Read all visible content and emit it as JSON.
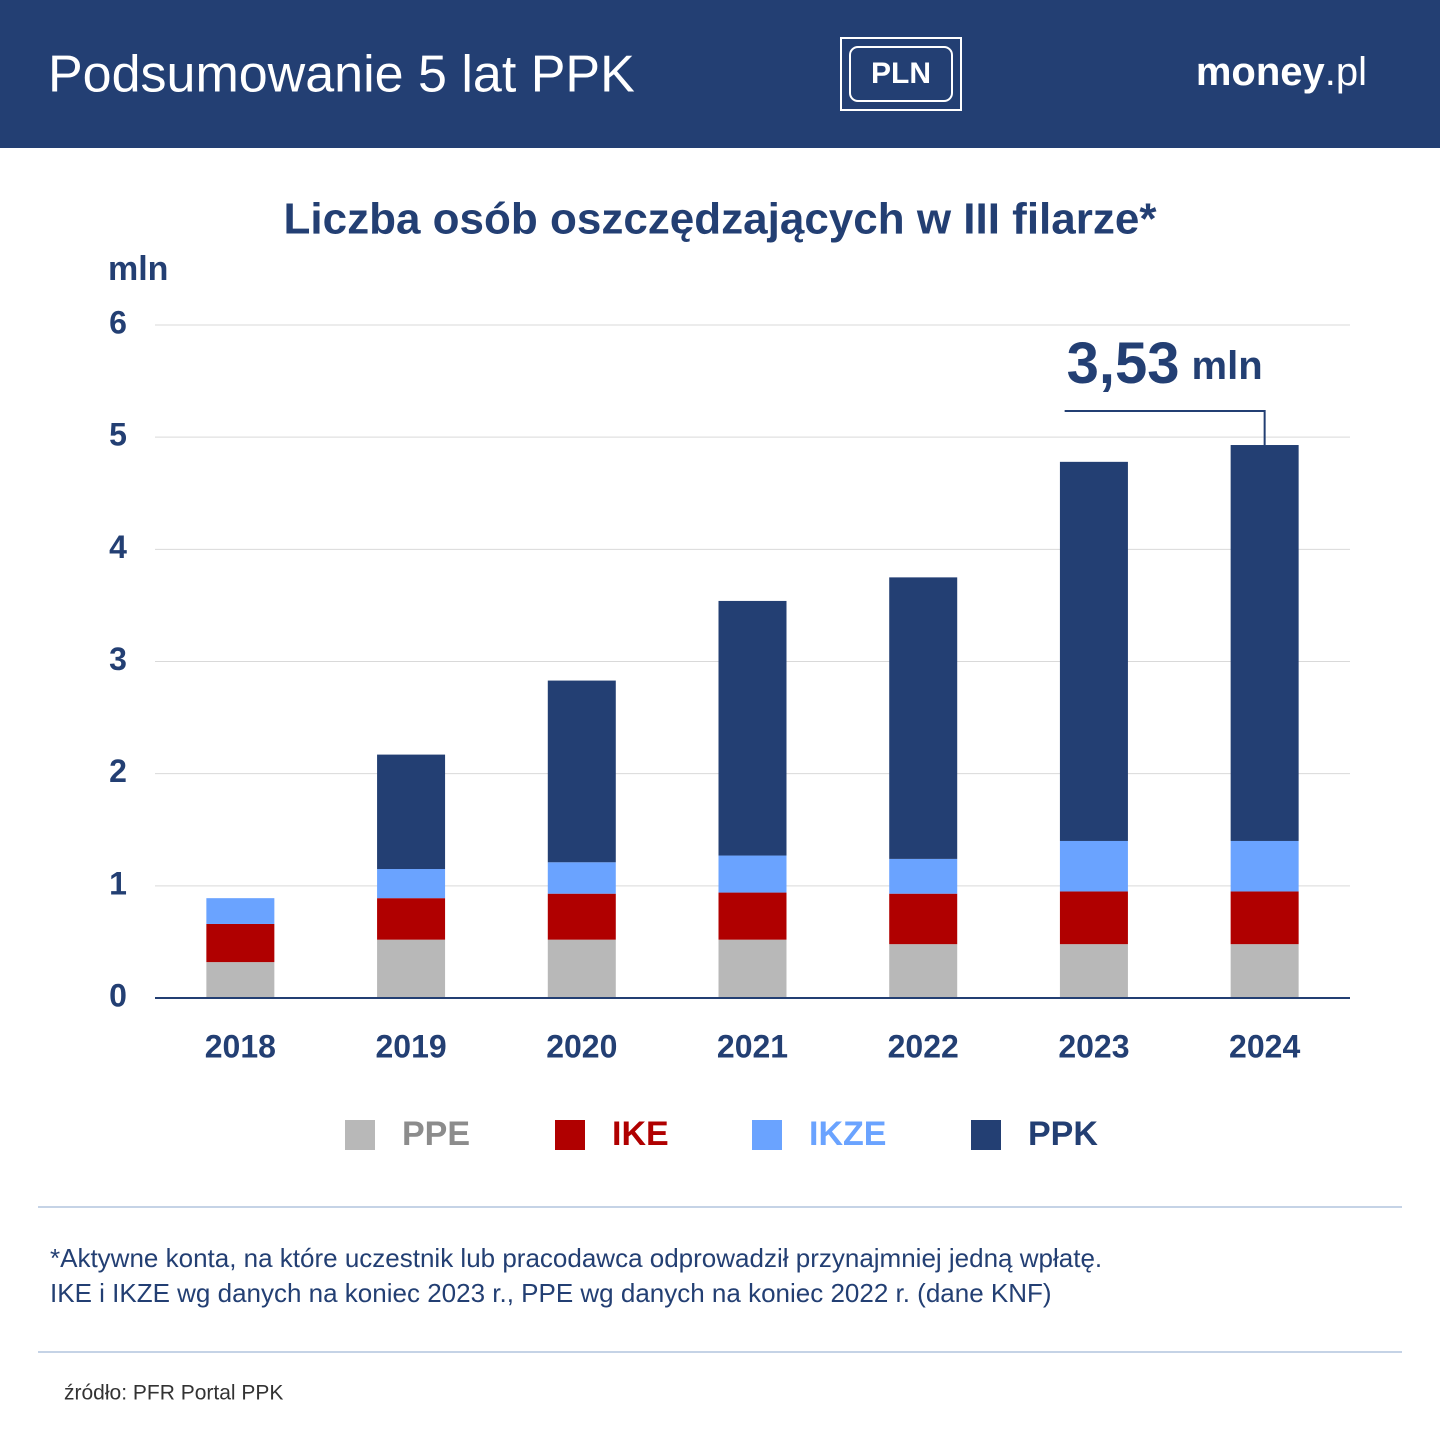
{
  "header": {
    "title": "Podsumowanie 5 lat PPK",
    "badge": "PLN",
    "logo": "money",
    "logo_suffix": ".pl"
  },
  "chart_data": {
    "type": "stacked_bar",
    "title": "Liczba osób oszczędzających w III filarze*",
    "y_label": "mln",
    "categories": [
      "2018",
      "2019",
      "2020",
      "2021",
      "2022",
      "2023",
      "2024"
    ],
    "series": [
      {
        "name": "PPE",
        "color": "#b8b8b8",
        "text_color": "#8c8c8c",
        "values": [
          0.32,
          0.52,
          0.52,
          0.52,
          0.48,
          0.48,
          0.48
        ]
      },
      {
        "name": "IKE",
        "color": "#b00000",
        "text_color": "#b00000",
        "values": [
          0.34,
          0.37,
          0.41,
          0.42,
          0.45,
          0.47,
          0.47
        ]
      },
      {
        "name": "IKZE",
        "color": "#6aa3ff",
        "text_color": "#6aa3ff",
        "values": [
          0.23,
          0.26,
          0.28,
          0.33,
          0.31,
          0.45,
          0.45
        ]
      },
      {
        "name": "PPK",
        "color": "#233f73",
        "text_color": "#233f73",
        "values": [
          0,
          1.02,
          1.62,
          2.27,
          2.51,
          3.38,
          3.53
        ],
        "value_labels": [
          null,
          null,
          null,
          null,
          null,
          null,
          "3,53"
        ]
      }
    ],
    "annotation_unit": "mln",
    "ylim": [
      0,
      6
    ],
    "yticks": [
      0,
      1,
      2,
      3,
      4,
      5,
      6
    ],
    "grid": true
  },
  "footnote": [
    "*Aktywne konta, na które uczestnik lub pracodawca odprowadził przynajmniej jedną wpłatę.",
    "IKE i IKZE wg danych na koniec 2023 r., PPE wg danych na koniec 2022 r. (dane KNF)"
  ],
  "source": "źródło: PFR Portal PPK"
}
